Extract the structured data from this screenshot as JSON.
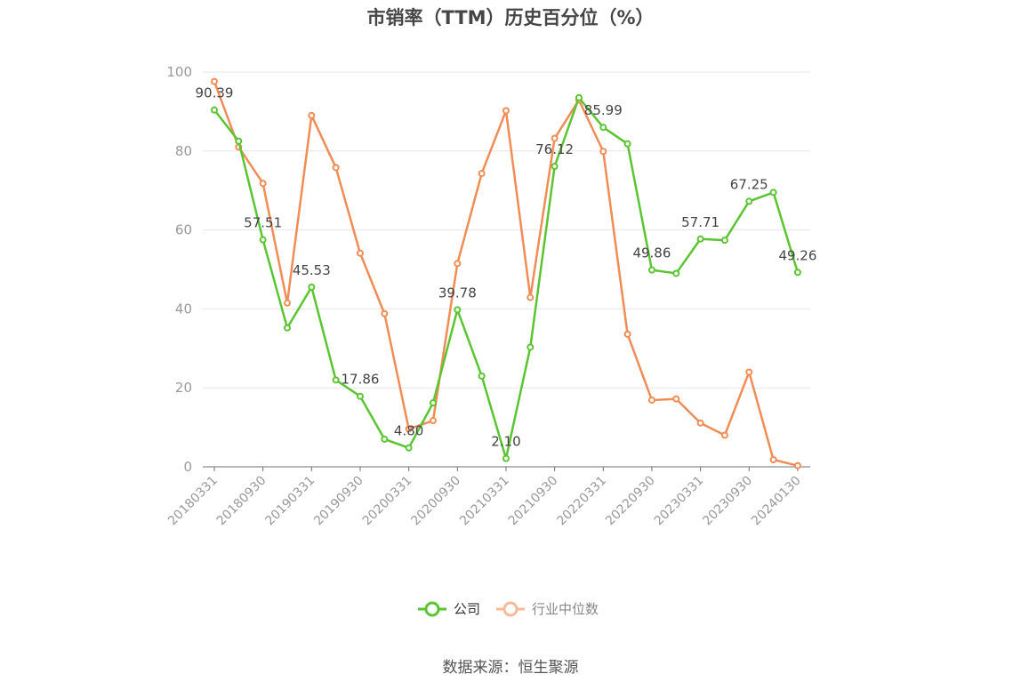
{
  "chart_data": {
    "type": "line",
    "title": "市销率（TTM）历史百分位（%）",
    "x_tick_labels": [
      "20180331",
      "20180930",
      "20190331",
      "20190930",
      "20200331",
      "20200930",
      "20210331",
      "20210930",
      "20220331",
      "20220930",
      "20230331",
      "20230930",
      "20240130"
    ],
    "y_ticks": [
      0,
      20,
      40,
      60,
      80,
      100
    ],
    "ylim": [
      0,
      100
    ],
    "grid": "horizontal",
    "legend_position": "bottom-center",
    "x": [
      "20180331",
      "20180630",
      "20180930",
      "20181231",
      "20190331",
      "20190630",
      "20190930",
      "20191231",
      "20200331",
      "20200630",
      "20200930",
      "20201231",
      "20210331",
      "20210630",
      "20210930",
      "20211231",
      "20220331",
      "20220630",
      "20220930",
      "20221231",
      "20230331",
      "20230630",
      "20230930",
      "20231231",
      "20240130"
    ],
    "series": [
      {
        "name": "公司",
        "color": "#5ac531",
        "values": [
          90.39,
          82.5,
          57.51,
          35.2,
          45.53,
          22.0,
          17.86,
          7.0,
          4.8,
          16.2,
          39.78,
          23.0,
          2.1,
          30.3,
          76.12,
          93.5,
          85.99,
          81.8,
          49.86,
          49.0,
          57.71,
          57.4,
          67.25,
          69.5,
          49.26
        ],
        "labels": {
          "0": "90.39",
          "2": "57.51",
          "4": "45.53",
          "6": "17.86",
          "8": "4.80",
          "10": "39.78",
          "12": "2.10",
          "14": "76.12",
          "16": "85.99",
          "18": "49.86",
          "20": "57.71",
          "22": "67.25",
          "24": "49.26"
        }
      },
      {
        "name": "行业中位数",
        "color": "#f08c55",
        "values": [
          97.6,
          81.0,
          71.8,
          41.5,
          89.0,
          75.8,
          54.1,
          38.8,
          9.6,
          11.7,
          51.5,
          74.3,
          90.2,
          42.9,
          83.2,
          92.9,
          79.9,
          33.6,
          16.9,
          17.2,
          11.1,
          8.0,
          24.0,
          1.8,
          0.3
        ],
        "labels": {}
      }
    ]
  },
  "legend": {
    "company_label": "公司",
    "industry_label": "行业中位数",
    "company_color": "#5ac531",
    "industry_color": "#f6b99a"
  },
  "source_note": "数据来源：恒生聚源"
}
